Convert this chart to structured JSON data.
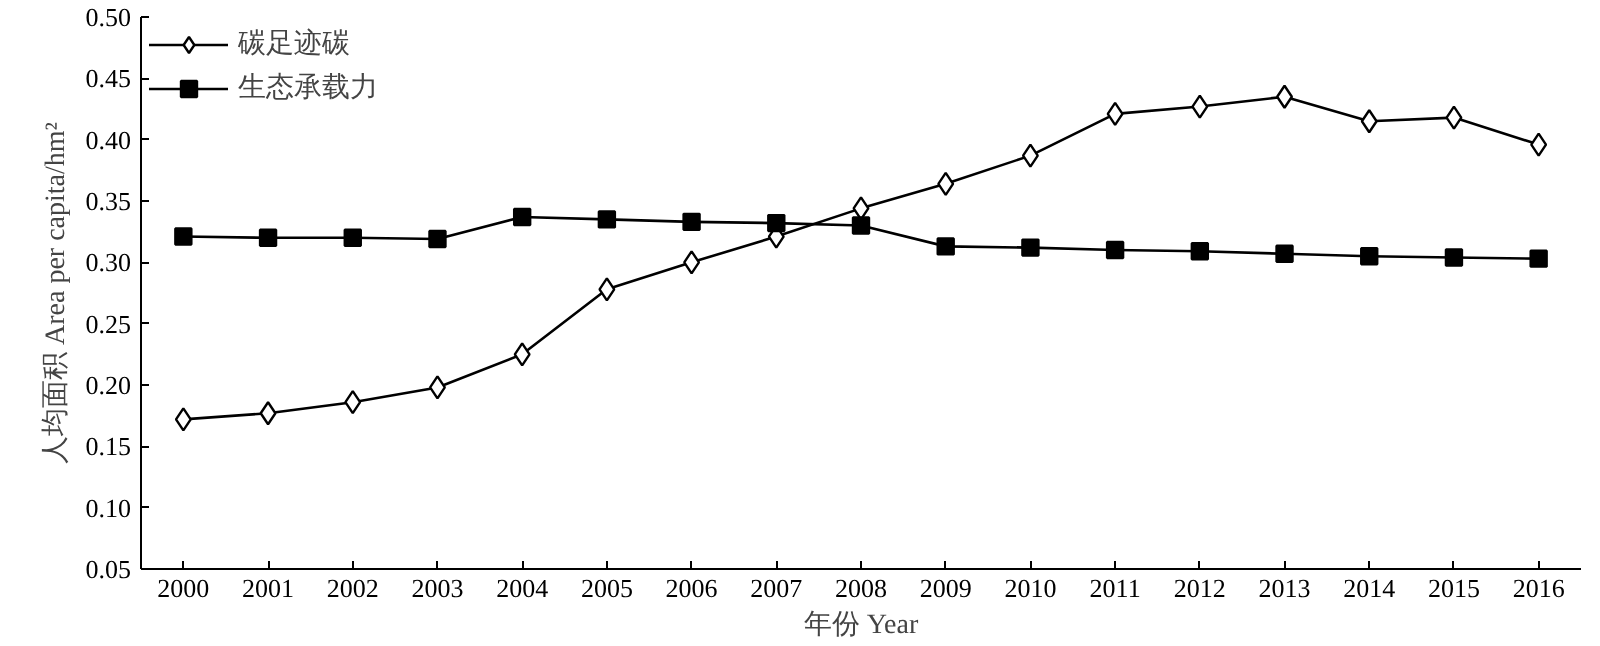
{
  "chart_data": {
    "type": "line",
    "xlabel": "年份 Year",
    "ylabel": "人均面积 Area per capita/hm²",
    "categories": [
      "2000",
      "2001",
      "2002",
      "2003",
      "2004",
      "2005",
      "2006",
      "2007",
      "2008",
      "2009",
      "2010",
      "2011",
      "2012",
      "2013",
      "2014",
      "2015",
      "2016"
    ],
    "series": [
      {
        "name": "碳足迹碳",
        "color": "#000000",
        "marker": "diamond",
        "values": [
          0.172,
          0.177,
          0.186,
          0.198,
          0.225,
          0.278,
          0.3,
          0.321,
          0.344,
          0.364,
          0.387,
          0.421,
          0.427,
          0.435,
          0.415,
          0.418,
          0.396
        ]
      },
      {
        "name": "生态承载力",
        "color": "#000000",
        "marker": "square",
        "values": [
          0.321,
          0.32,
          0.32,
          0.319,
          0.337,
          0.335,
          0.333,
          0.332,
          0.33,
          0.313,
          0.312,
          0.31,
          0.309,
          0.307,
          0.305,
          0.304,
          0.303
        ]
      }
    ],
    "ylim": [
      0.05,
      0.5
    ],
    "yticks": [
      {
        "value": 0.05,
        "label": "0.05"
      },
      {
        "value": 0.1,
        "label": "0.10"
      },
      {
        "value": 0.15,
        "label": "0.15"
      },
      {
        "value": 0.2,
        "label": "0.20"
      },
      {
        "value": 0.25,
        "label": "0.25"
      },
      {
        "value": 0.3,
        "label": "0.30"
      },
      {
        "value": 0.35,
        "label": "0.35"
      },
      {
        "value": 0.4,
        "label": "0.40"
      },
      {
        "value": 0.45,
        "label": "0.45"
      },
      {
        "value": 0.5,
        "label": "0.50"
      }
    ],
    "grid": false,
    "legend": "top left",
    "line_style": "solid"
  }
}
